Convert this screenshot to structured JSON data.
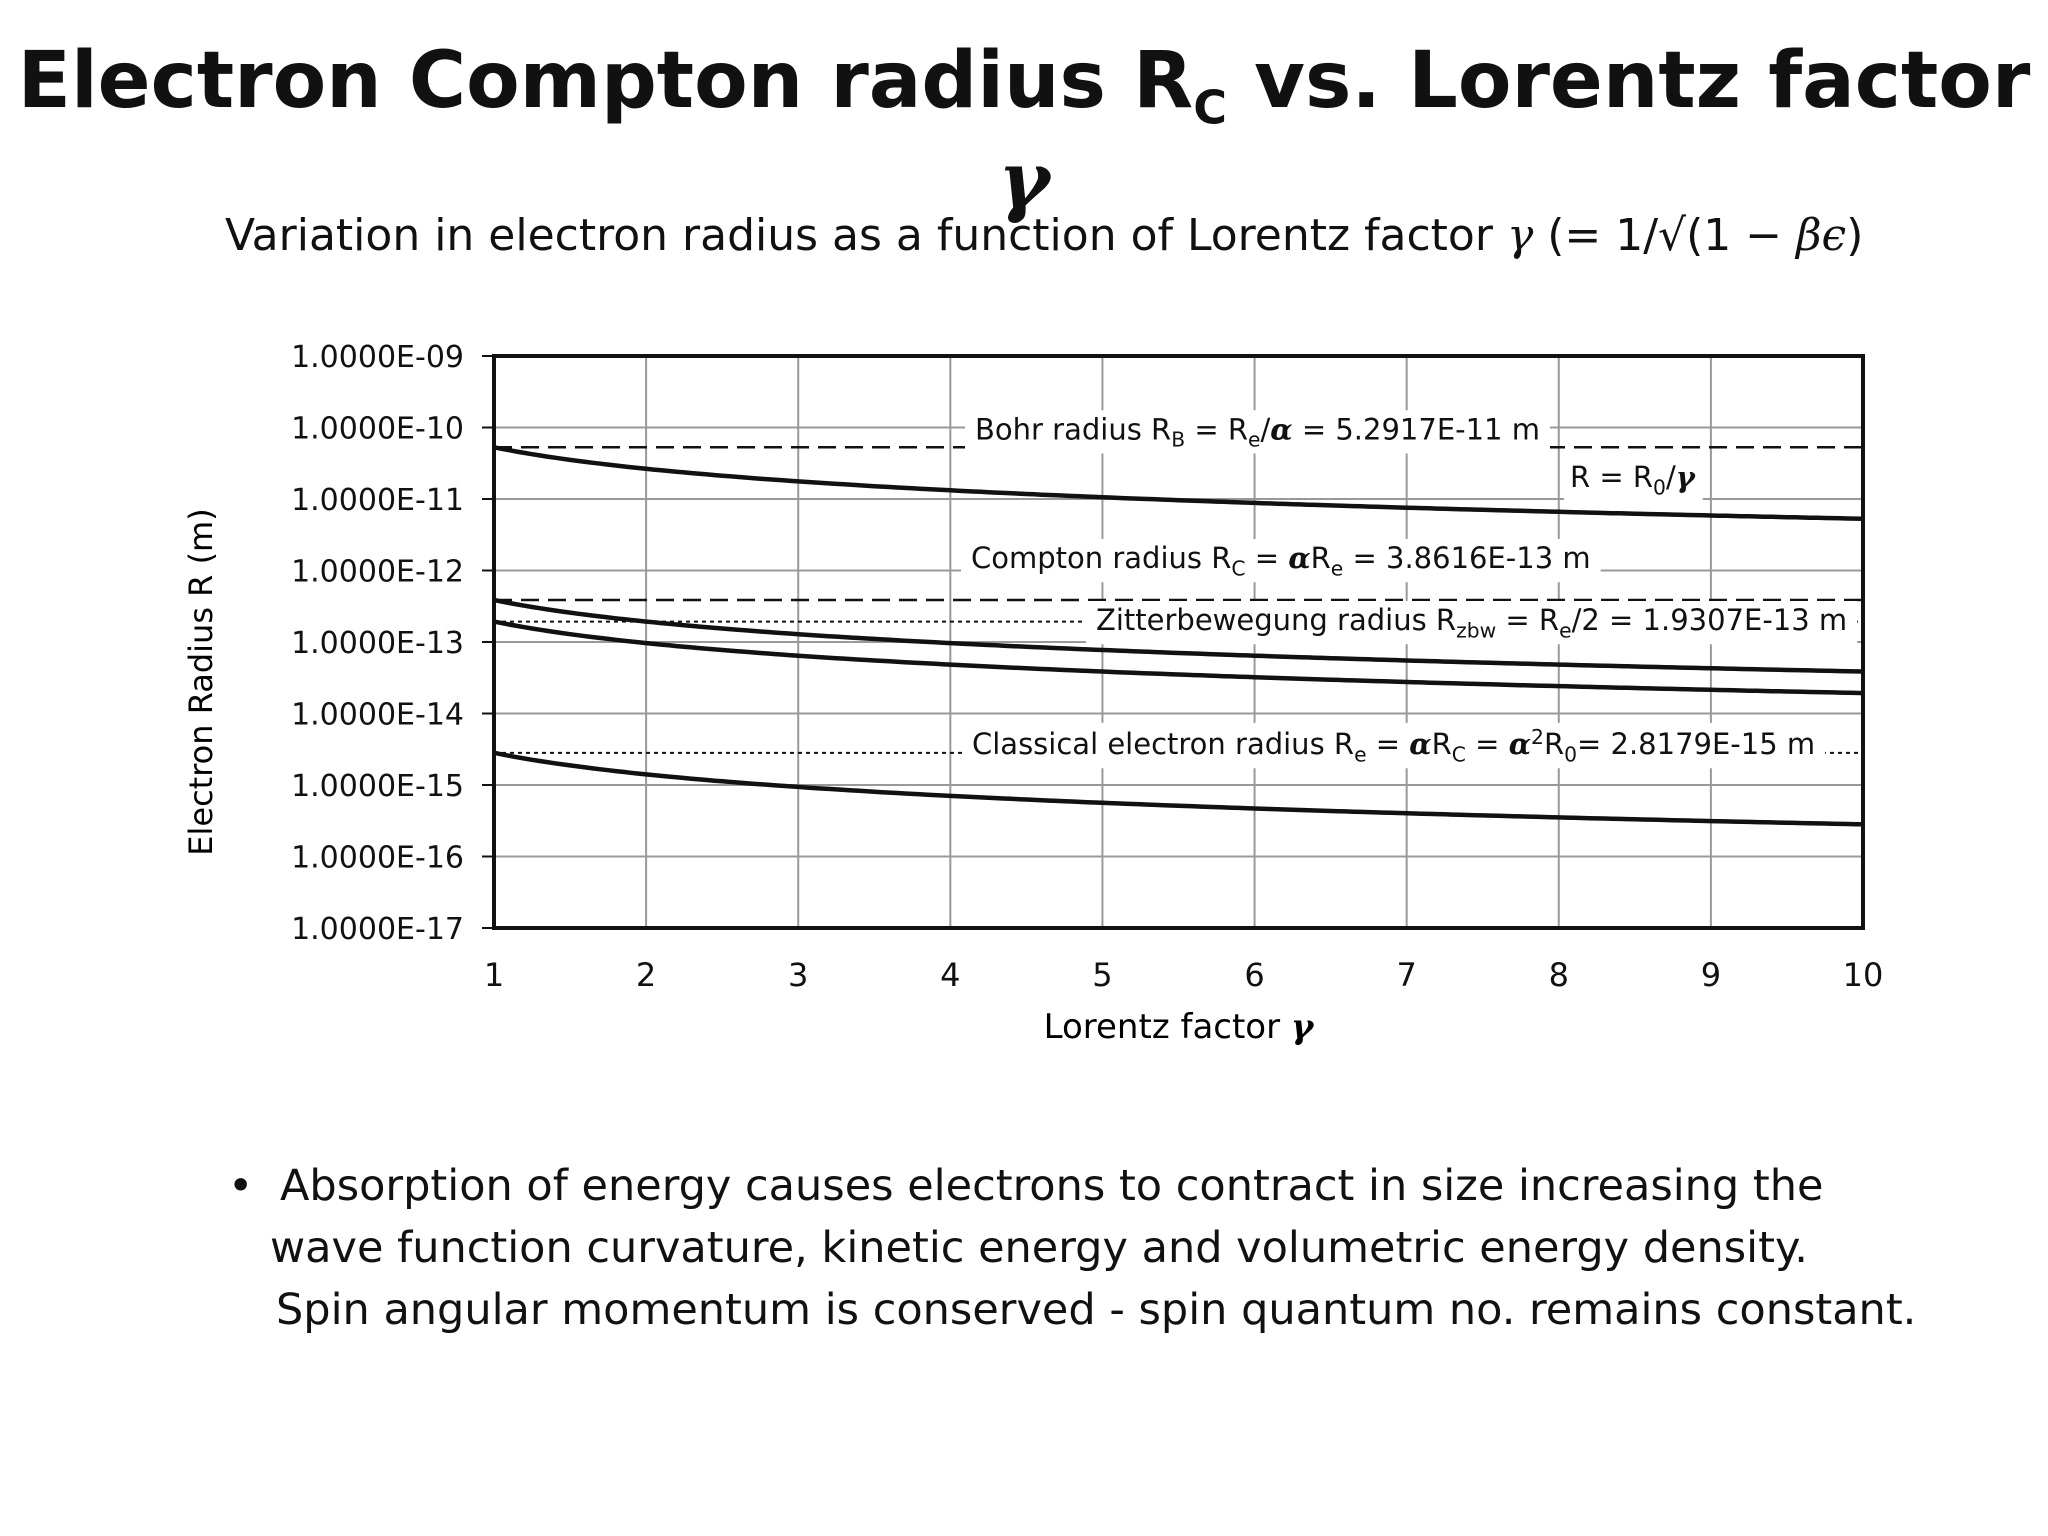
{
  "slide": {
    "title_main": "Electron Compton radius R",
    "title_sub": "C",
    "title_rest": " vs. Lorentz factor ",
    "title_gamma": "γ",
    "subtitle_pre": "Variation in electron radius as a function of Lorentz factor ",
    "subtitle_gamma": "γ",
    "subtitle_mid": " (= 1/√(1 − ",
    "subtitle_beta": "βϵ",
    "subtitle_end": ")",
    "bullet_symbol": "•",
    "bullet_lines": [
      "Absorption of energy causes electrons to contract in size increasing the",
      "wave function curvature, kinetic energy and volumetric energy density.",
      "Spin angular momentum is conserved - spin quantum no. remains constant."
    ]
  },
  "chart_data": {
    "type": "line",
    "y_scale": "log",
    "xlim": [
      1,
      10
    ],
    "ylim": [
      1e-17,
      1e-09
    ],
    "grid": true,
    "xlabel": "Lorentz factor γ",
    "ylabel": "Electron Radius   R  (m)",
    "x_ticks": [
      "1",
      "2",
      "3",
      "4",
      "5",
      "6",
      "7",
      "8",
      "9",
      "10"
    ],
    "y_ticks": [
      "1.0000E-09",
      "1.0000E-10",
      "1.0000E-11",
      "1.0000E-12",
      "1.0000E-13",
      "1.0000E-14",
      "1.0000E-15",
      "1.0000E-16",
      "1.0000E-17"
    ],
    "series": [
      {
        "r0": 5.2917e-11,
        "style": "solid"
      },
      {
        "r0": 3.8616e-13,
        "style": "solid"
      },
      {
        "r0": 1.9307e-13,
        "style": "solid"
      },
      {
        "r0": 2.8179e-15,
        "style": "solid"
      }
    ],
    "reference_lines": [
      {
        "y": 5.2917e-11,
        "style": "dashed",
        "label": "Bohr radius R_B = R_e/α = 5.2917E-11 m"
      },
      {
        "y": 3.8616e-13,
        "style": "dashed",
        "label": "Compton radius R_C = αR_e = 3.8616E-13 m"
      },
      {
        "y": 1.9307e-13,
        "style": "dotted",
        "label": "Zitterbewegung radius R_zbw = R_e/2 = 1.9307E-13 m"
      },
      {
        "y": 2.8179e-15,
        "style": "dotted",
        "label": "Classical electron radius  R_e = αR_C = α²R_0= 2.8179E-15 m"
      }
    ],
    "annotations": [
      "R = R_0/γ"
    ],
    "color": "#111111"
  }
}
